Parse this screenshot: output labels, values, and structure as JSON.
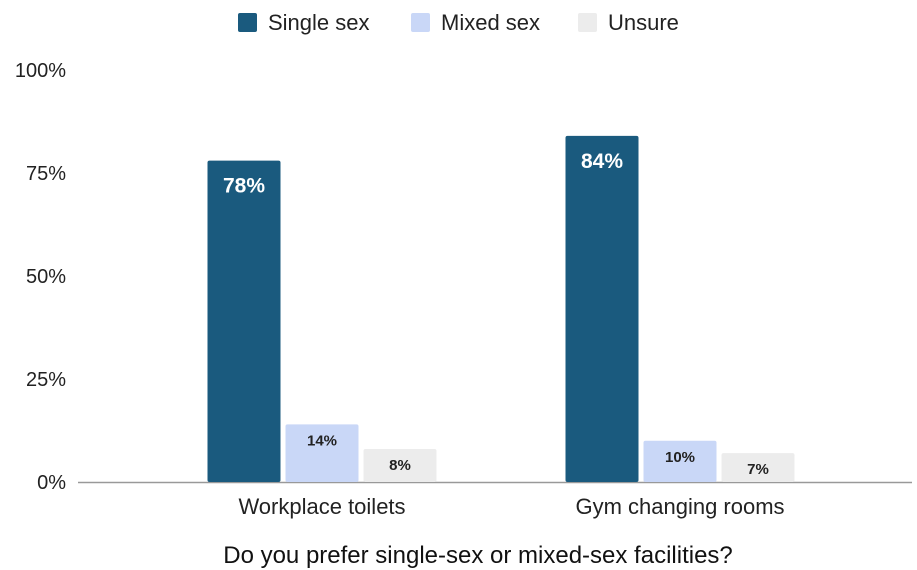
{
  "chart_data": {
    "type": "bar",
    "categories": [
      "Workplace toilets",
      "Gym changing rooms"
    ],
    "series": [
      {
        "name": "Single sex",
        "values": [
          78,
          84
        ],
        "color": "#1a5a7e",
        "labels": [
          "78%",
          "84%"
        ]
      },
      {
        "name": "Mixed sex",
        "values": [
          14,
          10
        ],
        "color": "#c9d7f7",
        "labels": [
          "14%",
          "10%"
        ]
      },
      {
        "name": "Unsure",
        "values": [
          8,
          7
        ],
        "color": "#ececec",
        "labels": [
          "8%",
          "7%"
        ]
      }
    ],
    "xlabel": "Do you prefer single-sex or mixed-sex facilities?",
    "ylabel": "",
    "ylim": [
      0,
      100
    ],
    "yticks": [
      {
        "value": 0,
        "label": "0%"
      },
      {
        "value": 25,
        "label": "25%"
      },
      {
        "value": 50,
        "label": "50%"
      },
      {
        "value": 75,
        "label": "75%"
      },
      {
        "value": 100,
        "label": "100%"
      }
    ],
    "grid": false,
    "legend_position": "top-center"
  }
}
